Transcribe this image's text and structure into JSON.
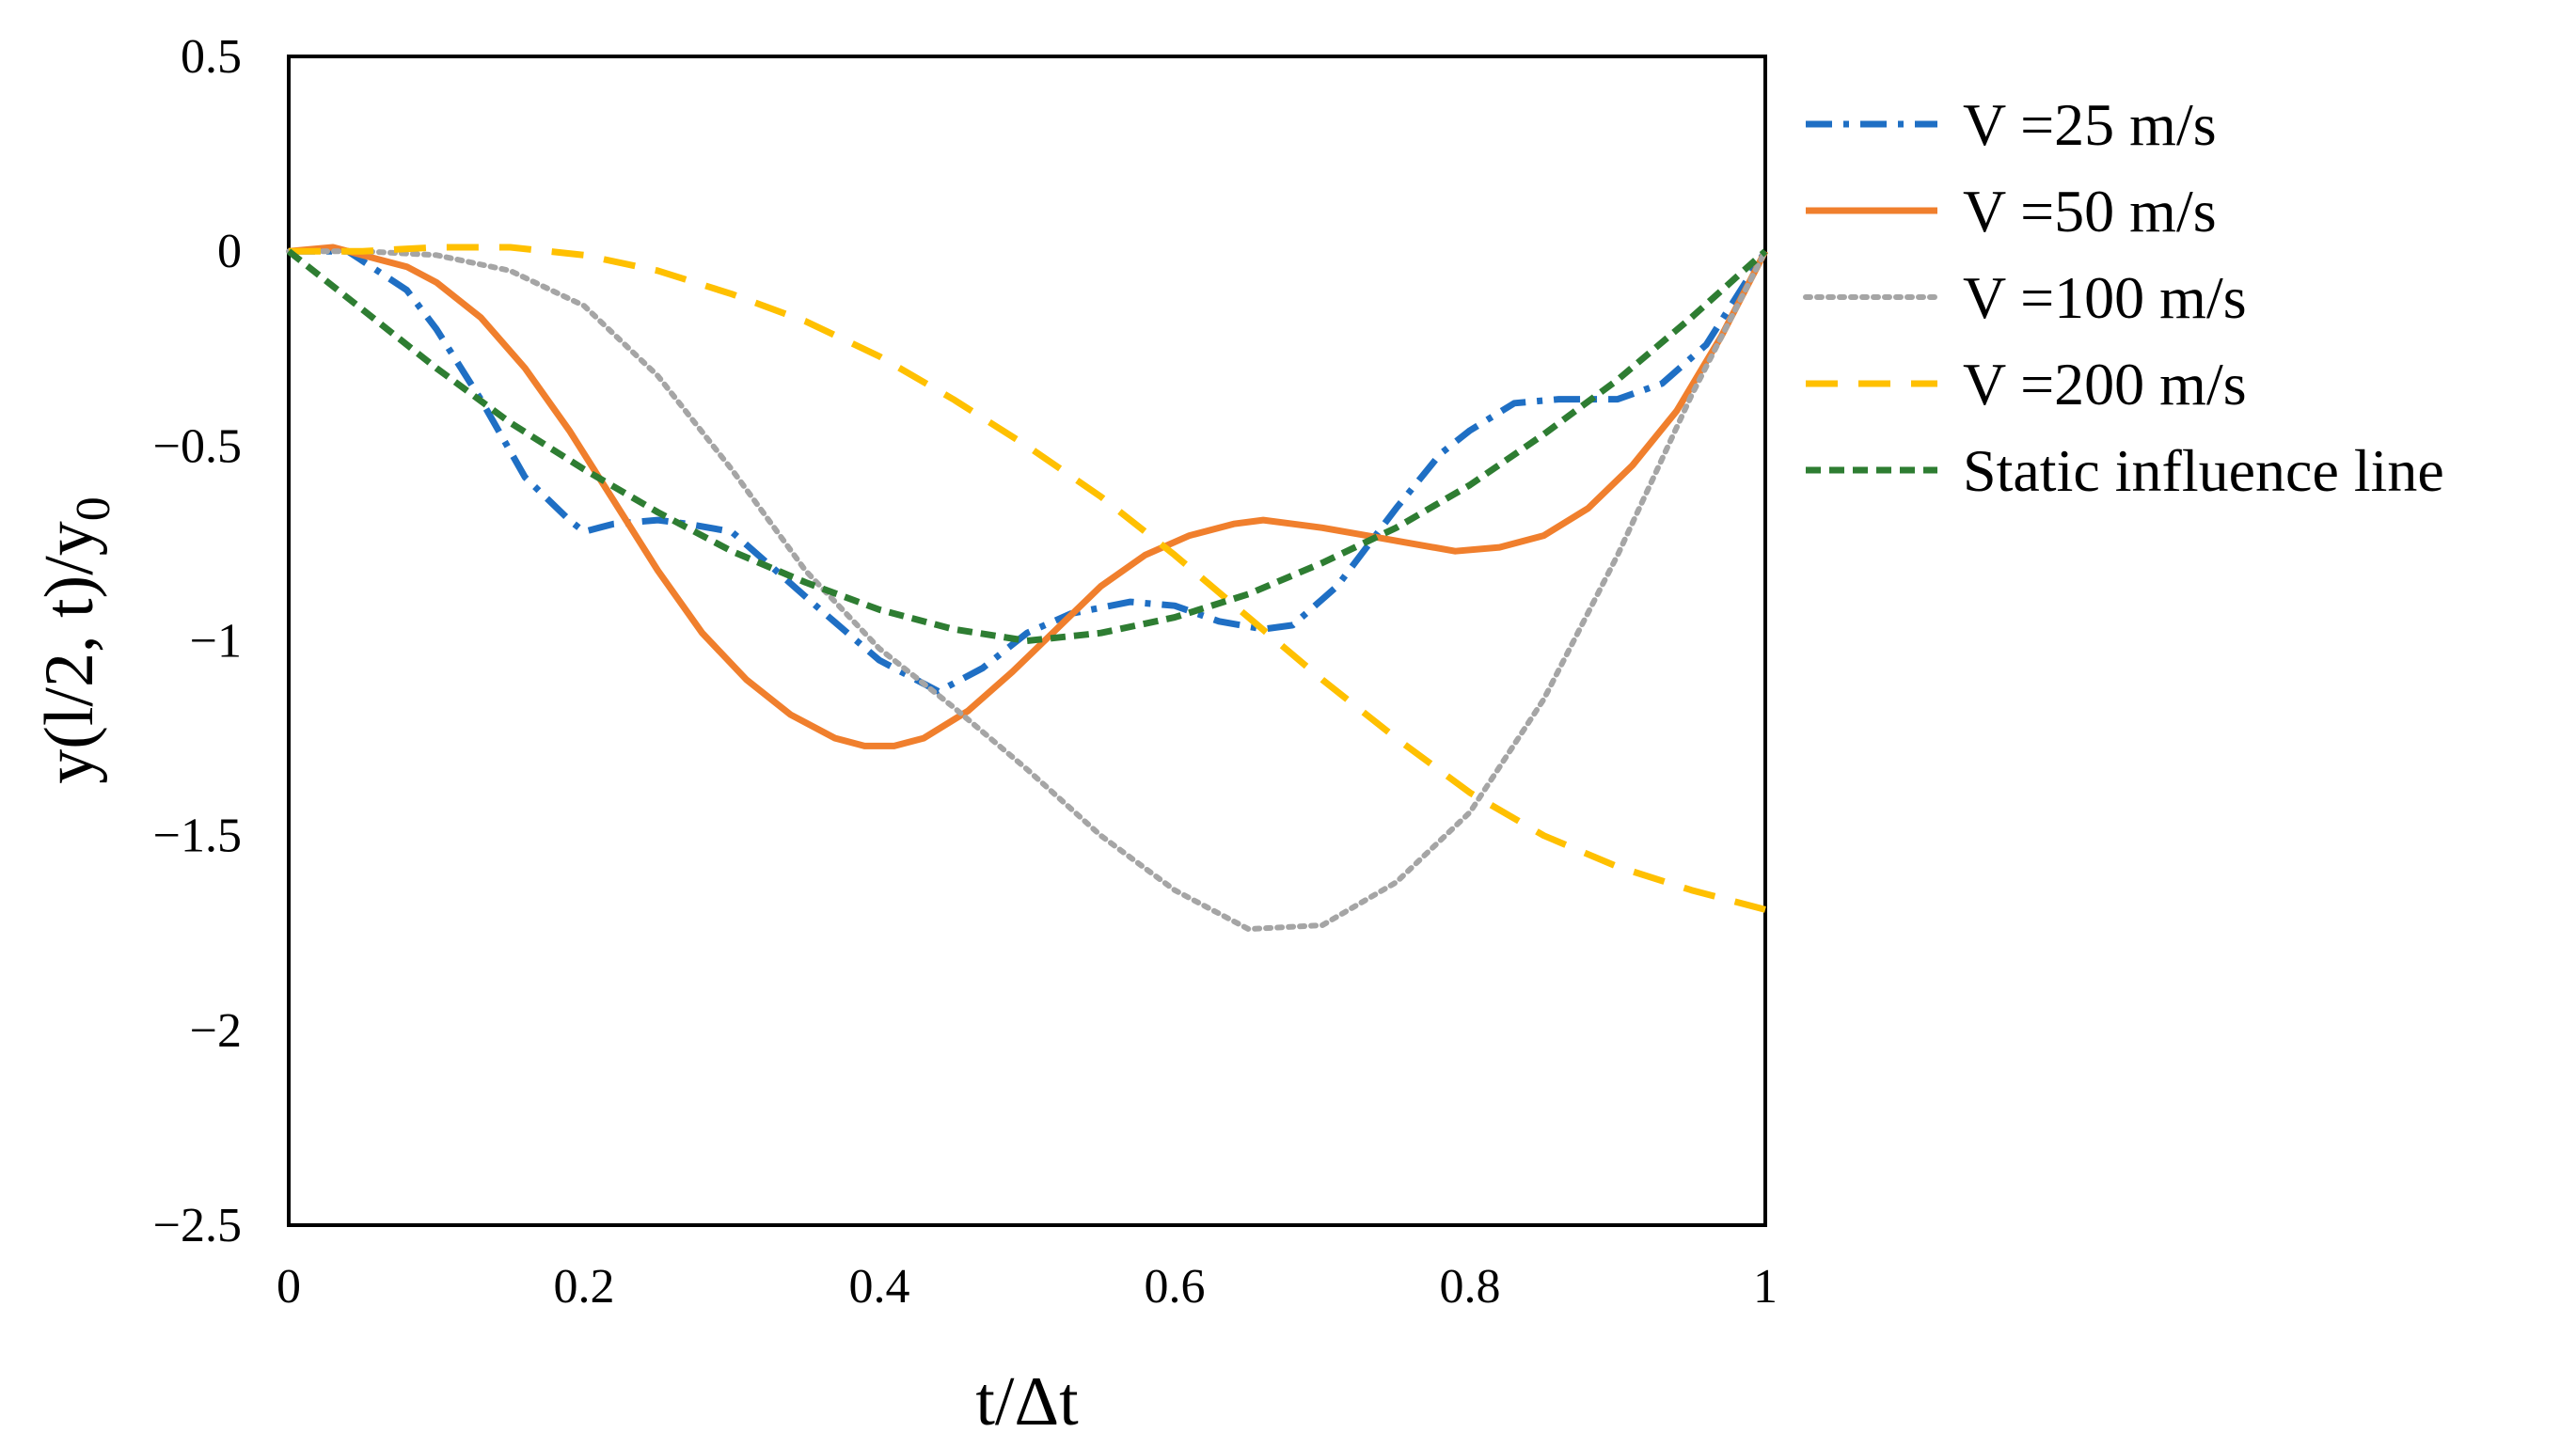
{
  "chart_data": {
    "type": "line",
    "title": "",
    "xlabel": "t/Δt",
    "ylabel_main": "y(l/2, t)/y",
    "ylabel_sub": "0",
    "xlim": [
      0,
      1
    ],
    "ylim": [
      -2.5,
      0.5
    ],
    "xticks": [
      0,
      0.2,
      0.4,
      0.6,
      0.8,
      1
    ],
    "yticks": [
      0.5,
      0,
      -0.5,
      -1,
      -1.5,
      -2,
      -2.5
    ],
    "xtick_labels": [
      "0",
      "0.2",
      "0.4",
      "0.6",
      "0.8",
      "1"
    ],
    "ytick_labels": [
      "0.5",
      "0",
      "−0.5",
      "−1",
      "−1.5",
      "−2",
      "−2.5"
    ],
    "grid": false,
    "legend_position": "right",
    "series": [
      {
        "name": "V =25 m/s",
        "color": "#1F6FC4",
        "dash": "dashdot",
        "x": [
          0,
          0.04,
          0.08,
          0.1,
          0.13,
          0.16,
          0.19,
          0.2,
          0.22,
          0.25,
          0.27,
          0.3,
          0.33,
          0.36,
          0.4,
          0.44,
          0.47,
          0.5,
          0.53,
          0.57,
          0.6,
          0.63,
          0.66,
          0.68,
          0.71,
          0.75,
          0.78,
          0.8,
          0.83,
          0.86,
          0.9,
          0.93,
          0.96,
          1
        ],
        "values": [
          0,
          0,
          -0.1,
          -0.2,
          -0.38,
          -0.58,
          -0.69,
          -0.72,
          -0.7,
          -0.69,
          -0.7,
          -0.72,
          -0.82,
          -0.92,
          -1.05,
          -1.13,
          -1.07,
          -0.98,
          -0.93,
          -0.9,
          -0.91,
          -0.95,
          -0.97,
          -0.96,
          -0.86,
          -0.66,
          -0.52,
          -0.46,
          -0.39,
          -0.38,
          -0.38,
          -0.34,
          -0.24,
          0
        ]
      },
      {
        "name": "V =50 m/s",
        "color": "#F07F2D",
        "dash": "solid",
        "x": [
          0,
          0.03,
          0.06,
          0.08,
          0.1,
          0.13,
          0.16,
          0.19,
          0.22,
          0.25,
          0.28,
          0.31,
          0.34,
          0.37,
          0.39,
          0.41,
          0.43,
          0.46,
          0.49,
          0.52,
          0.55,
          0.58,
          0.61,
          0.64,
          0.66,
          0.68,
          0.7,
          0.73,
          0.76,
          0.79,
          0.82,
          0.85,
          0.88,
          0.91,
          0.94,
          0.97,
          1
        ],
        "values": [
          0,
          0.01,
          -0.02,
          -0.04,
          -0.08,
          -0.17,
          -0.3,
          -0.46,
          -0.64,
          -0.82,
          -0.98,
          -1.1,
          -1.19,
          -1.25,
          -1.27,
          -1.27,
          -1.25,
          -1.18,
          -1.08,
          -0.97,
          -0.86,
          -0.78,
          -0.73,
          -0.7,
          -0.69,
          -0.7,
          -0.71,
          -0.73,
          -0.75,
          -0.77,
          -0.76,
          -0.73,
          -0.66,
          -0.55,
          -0.41,
          -0.22,
          0
        ]
      },
      {
        "name": "V =100 m/s",
        "color": "#A5A5A5",
        "dash": "dotted",
        "x": [
          0,
          0.05,
          0.1,
          0.15,
          0.2,
          0.25,
          0.3,
          0.35,
          0.4,
          0.45,
          0.5,
          0.55,
          0.6,
          0.65,
          0.7,
          0.75,
          0.8,
          0.85,
          0.9,
          0.95,
          1
        ],
        "values": [
          0,
          0,
          -0.01,
          -0.05,
          -0.14,
          -0.32,
          -0.56,
          -0.82,
          -1.02,
          -1.17,
          -1.33,
          -1.5,
          -1.64,
          -1.74,
          -1.73,
          -1.62,
          -1.44,
          -1.15,
          -0.78,
          -0.37,
          0
        ]
      },
      {
        "name": "V =200 m/s",
        "color": "#FFC000",
        "dash": "dashed",
        "x": [
          0,
          0.05,
          0.1,
          0.15,
          0.2,
          0.25,
          0.3,
          0.35,
          0.4,
          0.45,
          0.5,
          0.55,
          0.6,
          0.65,
          0.7,
          0.75,
          0.8,
          0.85,
          0.9,
          0.95,
          1
        ],
        "values": [
          0,
          0,
          0.01,
          0.01,
          -0.01,
          -0.05,
          -0.11,
          -0.18,
          -0.27,
          -0.38,
          -0.5,
          -0.63,
          -0.78,
          -0.94,
          -1.1,
          -1.25,
          -1.39,
          -1.5,
          -1.58,
          -1.64,
          -1.69
        ]
      },
      {
        "name": "Static influence line",
        "color": "#2E7D32",
        "dash": "short-dashed",
        "x": [
          0,
          0.05,
          0.1,
          0.15,
          0.2,
          0.25,
          0.3,
          0.35,
          0.4,
          0.45,
          0.5,
          0.55,
          0.6,
          0.65,
          0.7,
          0.75,
          0.8,
          0.85,
          0.9,
          0.95,
          1
        ],
        "values": [
          0,
          -0.15,
          -0.3,
          -0.44,
          -0.56,
          -0.67,
          -0.77,
          -0.85,
          -0.92,
          -0.97,
          -1.0,
          -0.98,
          -0.94,
          -0.88,
          -0.8,
          -0.71,
          -0.6,
          -0.47,
          -0.33,
          -0.17,
          0
        ]
      }
    ]
  }
}
